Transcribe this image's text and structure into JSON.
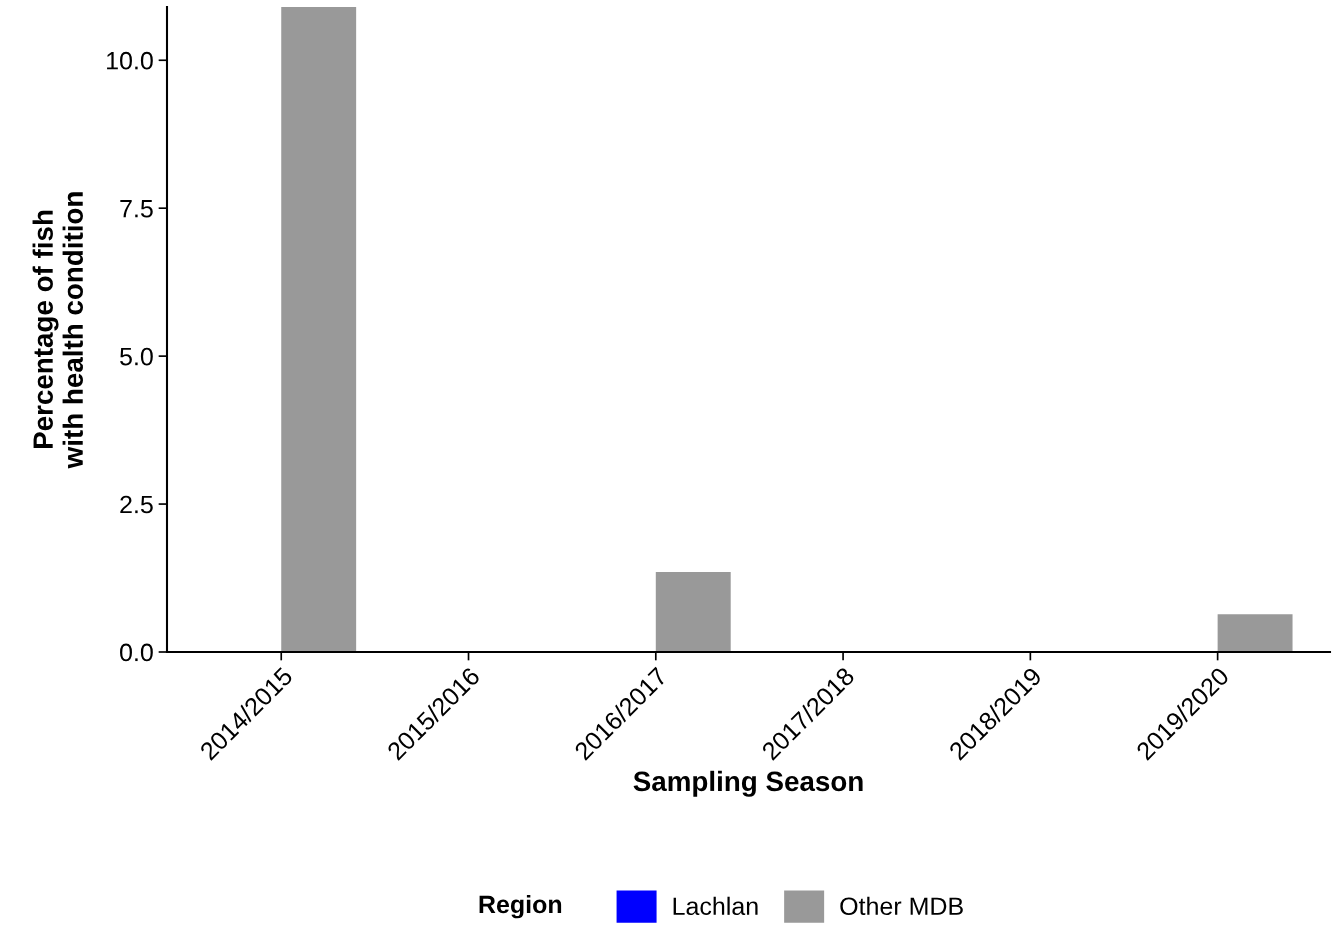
{
  "chart_data": {
    "type": "bar",
    "xlabel": "Sampling Season",
    "ylabel": "Percentage of fish\nwith health condition",
    "legend_title": "Region",
    "legend": "bottom",
    "grid": false,
    "categories": [
      "2014/2015",
      "2015/2016",
      "2016/2017",
      "2017/2018",
      "2018/2019",
      "2019/2020"
    ],
    "series": [
      {
        "name": "Lachlan",
        "color": "#0000ff",
        "values": [
          0,
          0,
          0,
          0,
          0,
          0
        ]
      },
      {
        "name": "Other MDB",
        "color": "#999999",
        "values": [
          10.9,
          0,
          1.35,
          0,
          0,
          0.64
        ]
      }
    ],
    "ylim": [
      0,
      10.9
    ],
    "yticks": [
      {
        "value": 0,
        "label": "0.0"
      },
      {
        "value": 2.5,
        "label": "2.5"
      },
      {
        "value": 5,
        "label": "5.0"
      },
      {
        "value": 7.5,
        "label": "7.5"
      },
      {
        "value": 10,
        "label": "10.0"
      }
    ]
  }
}
